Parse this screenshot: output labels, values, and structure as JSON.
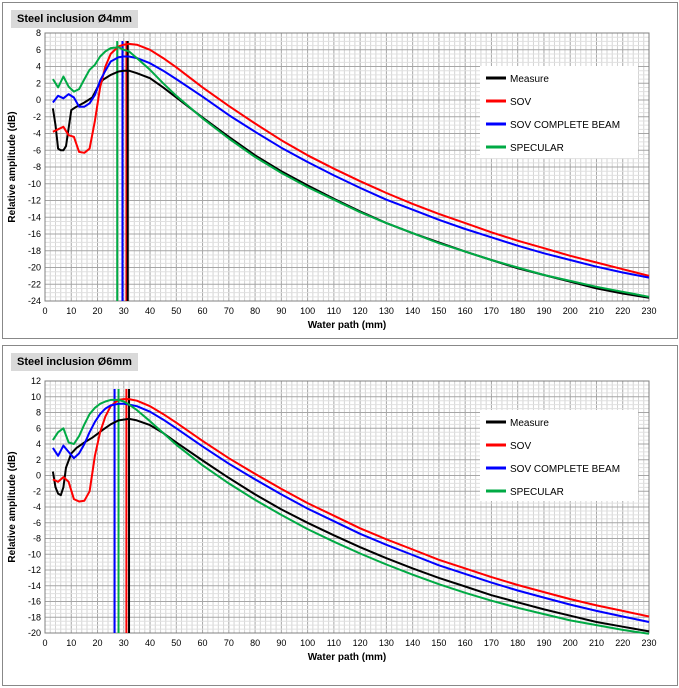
{
  "chart_data": [
    {
      "type": "line",
      "title": "Steel inclusion Ø4mm",
      "xlabel": "Water path (mm)",
      "ylabel": "Relative amplitude (dB)",
      "xlim": [
        0,
        230
      ],
      "ylim": [
        -24,
        8
      ],
      "xticks": [
        0,
        10,
        20,
        30,
        40,
        50,
        60,
        70,
        80,
        90,
        100,
        110,
        120,
        130,
        140,
        150,
        160,
        170,
        180,
        190,
        200,
        210,
        220,
        230
      ],
      "yticks": [
        8,
        6,
        4,
        2,
        0,
        -2,
        -4,
        -6,
        -8,
        -10,
        -12,
        -14,
        -16,
        -18,
        -20,
        -22,
        -24
      ],
      "grid": true,
      "legend_position": "top-right",
      "series": [
        {
          "name": "Measure",
          "color": "#000000",
          "x": [
            3,
            4,
            5,
            6,
            7,
            8,
            10,
            12,
            15,
            18,
            20,
            22,
            25,
            28,
            30,
            32,
            35,
            40,
            45,
            50,
            60,
            70,
            80,
            90,
            100,
            110,
            120,
            130,
            140,
            150,
            160,
            170,
            180,
            190,
            200,
            210,
            220,
            230
          ],
          "y": [
            -1,
            -3,
            -5.8,
            -6,
            -6,
            -5.5,
            -1.2,
            -0.8,
            -0.3,
            0.3,
            1.5,
            2.4,
            3.0,
            3.4,
            3.5,
            3.5,
            3.2,
            2.6,
            1.5,
            0.3,
            -2.1,
            -4.4,
            -6.6,
            -8.5,
            -10.2,
            -11.8,
            -13.3,
            -14.7,
            -15.9,
            -17.0,
            -18.1,
            -19.1,
            -20.1,
            -20.9,
            -21.7,
            -22.5,
            -23.1,
            -23.6
          ]
        },
        {
          "name": "SOV",
          "color": "#ff0000",
          "x": [
            3,
            5,
            7,
            9,
            11,
            13,
            15,
            17,
            19,
            21,
            23,
            25,
            28,
            30,
            32,
            35,
            40,
            45,
            50,
            60,
            70,
            80,
            90,
            100,
            110,
            120,
            130,
            140,
            150,
            160,
            170,
            180,
            190,
            200,
            210,
            220,
            230
          ],
          "y": [
            -3.8,
            -3.5,
            -3.2,
            -4.2,
            -4.4,
            -6.2,
            -6.3,
            -5.8,
            -2.5,
            1.5,
            4.0,
            5.5,
            6.4,
            6.6,
            6.7,
            6.6,
            6.0,
            5.0,
            3.9,
            1.5,
            -0.7,
            -2.8,
            -4.8,
            -6.6,
            -8.2,
            -9.7,
            -11.1,
            -12.4,
            -13.6,
            -14.7,
            -15.8,
            -16.8,
            -17.7,
            -18.6,
            -19.4,
            -20.2,
            -21.0
          ]
        },
        {
          "name": "SOV COMPLETE BEAM",
          "color": "#0000ff",
          "x": [
            3,
            5,
            7,
            9,
            11,
            13,
            15,
            17,
            19,
            21,
            23,
            25,
            28,
            30,
            32,
            35,
            40,
            45,
            50,
            60,
            70,
            80,
            90,
            100,
            110,
            120,
            130,
            140,
            150,
            160,
            170,
            180,
            190,
            200,
            210,
            220,
            230
          ],
          "y": [
            -0.3,
            0.5,
            0.2,
            0.7,
            0.3,
            -0.8,
            -0.8,
            -0.4,
            0.6,
            2.3,
            3.5,
            4.6,
            5.1,
            5.2,
            5.2,
            5.0,
            4.4,
            3.5,
            2.5,
            0.4,
            -1.8,
            -3.8,
            -5.7,
            -7.4,
            -9.0,
            -10.5,
            -11.9,
            -13.1,
            -14.3,
            -15.4,
            -16.4,
            -17.4,
            -18.3,
            -19.1,
            -19.9,
            -20.6,
            -21.2
          ]
        },
        {
          "name": "SPECULAR",
          "color": "#00aa44",
          "x": [
            3,
            5,
            7,
            9,
            11,
            13,
            15,
            17,
            19,
            21,
            23,
            25,
            28,
            30,
            32,
            35,
            40,
            45,
            50,
            60,
            70,
            80,
            90,
            100,
            110,
            120,
            130,
            140,
            150,
            160,
            170,
            180,
            190,
            200,
            210,
            220,
            230
          ],
          "y": [
            2.5,
            1.5,
            2.8,
            1.6,
            1.0,
            1.3,
            2.5,
            3.6,
            4.2,
            5.2,
            5.8,
            6.2,
            6.3,
            6.0,
            5.8,
            5.0,
            3.6,
            2.0,
            0.5,
            -2.2,
            -4.6,
            -6.8,
            -8.7,
            -10.4,
            -11.9,
            -13.4,
            -14.7,
            -15.9,
            -17.1,
            -18.1,
            -19.1,
            -20.0,
            -20.9,
            -21.6,
            -22.3,
            -22.9,
            -23.5
          ]
        }
      ],
      "vlines": [
        {
          "x": 27.5,
          "color": "#00aa44"
        },
        {
          "x": 29.5,
          "color": "#0000ff"
        },
        {
          "x": 31,
          "color": "#ff0000"
        },
        {
          "x": 31.5,
          "color": "#000000"
        }
      ]
    },
    {
      "type": "line",
      "title": "Steel inclusion Ø6mm",
      "xlabel": "Water path (mm)",
      "ylabel": "Relative amplitude (dB)",
      "xlim": [
        0,
        230
      ],
      "ylim": [
        -20,
        12
      ],
      "xticks": [
        0,
        10,
        20,
        30,
        40,
        50,
        60,
        70,
        80,
        90,
        100,
        110,
        120,
        130,
        140,
        150,
        160,
        170,
        180,
        190,
        200,
        210,
        220,
        230
      ],
      "yticks": [
        12,
        10,
        8,
        6,
        4,
        2,
        0,
        -2,
        -4,
        -6,
        -8,
        -10,
        -12,
        -14,
        -16,
        -18,
        -20
      ],
      "grid": true,
      "legend_position": "top-right",
      "series": [
        {
          "name": "Measure",
          "color": "#000000",
          "x": [
            3,
            4,
            5,
            6,
            7,
            8,
            10,
            12,
            15,
            18,
            20,
            22,
            25,
            28,
            30,
            32,
            35,
            40,
            45,
            50,
            60,
            70,
            80,
            90,
            100,
            110,
            120,
            130,
            140,
            150,
            160,
            170,
            180,
            190,
            200,
            210,
            220,
            230
          ],
          "y": [
            0.5,
            -1.5,
            -2.3,
            -2.5,
            -1.5,
            1.0,
            2.8,
            3.5,
            4.2,
            4.8,
            5.3,
            5.8,
            6.5,
            7.0,
            7.1,
            7.2,
            7.0,
            6.4,
            5.4,
            4.2,
            1.9,
            -0.3,
            -2.4,
            -4.3,
            -6.0,
            -7.6,
            -9.1,
            -10.5,
            -11.8,
            -13.0,
            -14.1,
            -15.2,
            -16.1,
            -17.0,
            -17.8,
            -18.6,
            -19.2,
            -19.8
          ]
        },
        {
          "name": "SOV",
          "color": "#ff0000",
          "x": [
            3,
            5,
            7,
            9,
            11,
            13,
            15,
            17,
            19,
            21,
            23,
            25,
            28,
            30,
            32,
            35,
            40,
            45,
            50,
            60,
            70,
            80,
            90,
            100,
            110,
            120,
            130,
            140,
            150,
            160,
            170,
            180,
            190,
            200,
            210,
            220,
            230
          ],
          "y": [
            -0.5,
            -0.8,
            -0.2,
            -0.8,
            -3.0,
            -3.3,
            -3.2,
            -2.0,
            2.5,
            5.5,
            7.5,
            8.8,
            9.6,
            9.7,
            9.7,
            9.5,
            8.8,
            7.8,
            6.7,
            4.4,
            2.2,
            0.2,
            -1.7,
            -3.5,
            -5.1,
            -6.7,
            -8.1,
            -9.4,
            -10.7,
            -11.8,
            -12.9,
            -13.9,
            -14.8,
            -15.7,
            -16.5,
            -17.2,
            -17.9
          ]
        },
        {
          "name": "SOV COMPLETE BEAM",
          "color": "#0000ff",
          "x": [
            3,
            5,
            7,
            9,
            11,
            13,
            15,
            17,
            19,
            21,
            23,
            25,
            28,
            30,
            32,
            35,
            40,
            45,
            50,
            60,
            70,
            80,
            90,
            100,
            110,
            120,
            130,
            140,
            150,
            160,
            170,
            180,
            190,
            200,
            210,
            220,
            230
          ],
          "y": [
            3.5,
            2.5,
            3.8,
            3.0,
            2.2,
            2.8,
            4.0,
            5.5,
            6.8,
            7.8,
            8.5,
            8.9,
            9.1,
            9.1,
            9.0,
            8.8,
            8.1,
            7.1,
            6.0,
            3.7,
            1.5,
            -0.5,
            -2.4,
            -4.2,
            -5.8,
            -7.4,
            -8.8,
            -10.1,
            -11.4,
            -12.5,
            -13.6,
            -14.6,
            -15.5,
            -16.4,
            -17.2,
            -17.9,
            -18.6
          ]
        },
        {
          "name": "SPECULAR",
          "color": "#00aa44",
          "x": [
            3,
            5,
            7,
            9,
            11,
            13,
            15,
            17,
            19,
            21,
            23,
            25,
            28,
            30,
            32,
            35,
            40,
            45,
            50,
            60,
            70,
            80,
            90,
            100,
            110,
            120,
            130,
            140,
            150,
            160,
            170,
            180,
            190,
            200,
            210,
            220,
            230
          ],
          "y": [
            4.5,
            5.5,
            6.0,
            4.2,
            4.0,
            5.0,
            6.5,
            7.8,
            8.6,
            9.1,
            9.4,
            9.6,
            9.6,
            9.4,
            9.0,
            8.3,
            6.9,
            5.4,
            3.9,
            1.3,
            -1.0,
            -3.1,
            -5.0,
            -6.8,
            -8.4,
            -9.9,
            -11.3,
            -12.6,
            -13.8,
            -14.9,
            -15.9,
            -16.8,
            -17.6,
            -18.4,
            -19.0,
            -19.6,
            -20.1
          ]
        }
      ],
      "vlines": [
        {
          "x": 26.5,
          "color": "#0000ff"
        },
        {
          "x": 28,
          "color": "#00aa44"
        },
        {
          "x": 31,
          "color": "#ff0000"
        },
        {
          "x": 32,
          "color": "#000000"
        }
      ]
    }
  ]
}
